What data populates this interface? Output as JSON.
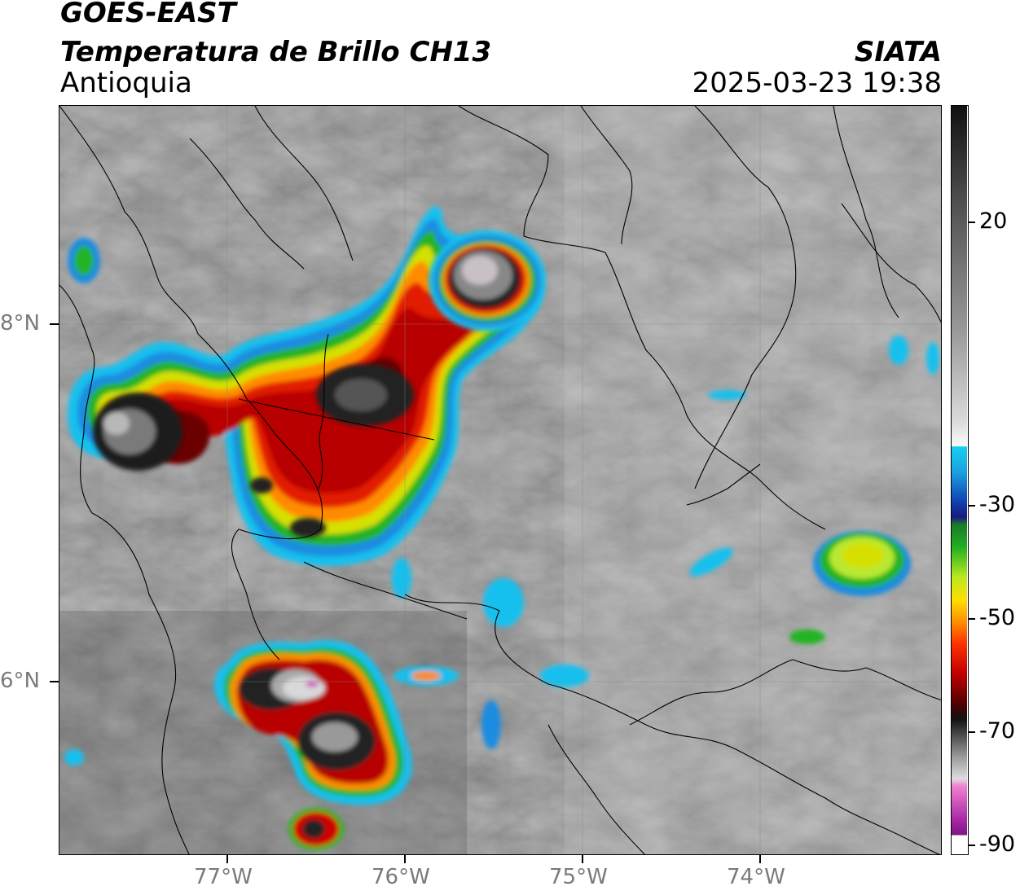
{
  "header": {
    "satellite": "GOES-EAST",
    "product": "Temperatura de Brillo CH13",
    "region": "Antioquia",
    "agency": "SIATA",
    "datetime": "2025-03-23 19:38"
  },
  "axes": {
    "x_ticks": [
      "77°W",
      "76°W",
      "75°W",
      "74°W"
    ],
    "y_ticks": [
      "8°N",
      "6°N"
    ]
  },
  "colorbar": {
    "ticks": [
      "20",
      "-30",
      "-50",
      "-70",
      "-90"
    ]
  },
  "colors": {
    "background": "#ffffff",
    "cold_core": "#1a1a1a",
    "red": "#c40000",
    "orange": "#ff8a00",
    "yellow": "#e6e600",
    "green": "#1fb01f",
    "blue": "#1060c8",
    "cyan": "#18c8f0",
    "magenta": "#c040c0"
  }
}
